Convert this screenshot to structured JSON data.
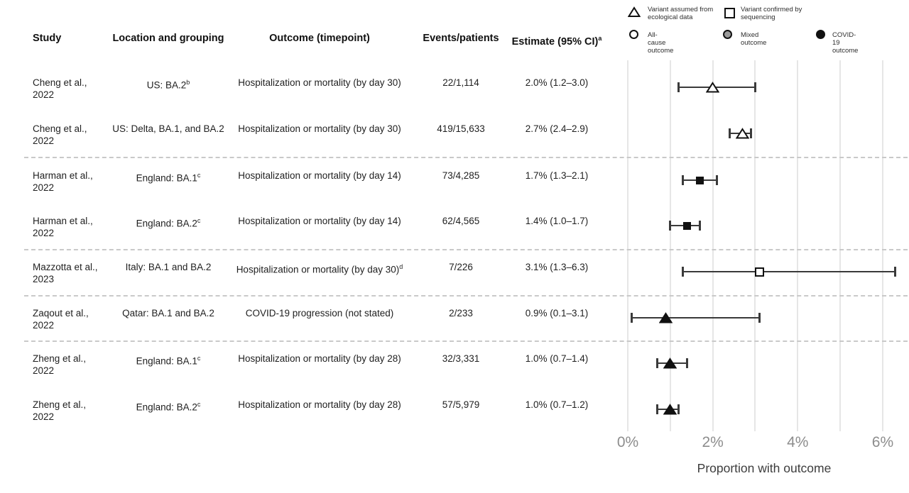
{
  "figure": {
    "columns": {
      "study": "Study",
      "location": "Location and grouping",
      "outcome": "Outcome (timepoint)",
      "events": "Events/patients",
      "estimate": "Estimate (95% CI)",
      "estimate_sup": "a"
    },
    "legend": [
      {
        "icon": "triangle-open-icon",
        "label": "Variant assumed from ecological data"
      },
      {
        "icon": "square-open-icon",
        "label": "Variant confirmed by sequencing"
      },
      {
        "icon": "circle-open-icon",
        "label": "All-cause outcome"
      },
      {
        "icon": "circle-gray-icon",
        "label": "Mixed outcome"
      },
      {
        "icon": "circle-black-icon",
        "label": "COVID-19 outcome"
      }
    ],
    "colors": {
      "marker": "#111111",
      "ci_line": "#3a3a3a",
      "gridline": "#e6e6e6",
      "separator": "#c9c9c9",
      "tick_label": "#8d8d8d",
      "mixed_fill": "#9a9a9a"
    }
  },
  "chart_data": {
    "type": "forest",
    "xlabel": "Proportion with outcome",
    "xlim": [
      0,
      6
    ],
    "x_tick_values": [
      0,
      2,
      4,
      6
    ],
    "x_tick_labels": [
      "0%",
      "2%",
      "4%",
      "6%"
    ],
    "gridline_step_pct": 1,
    "legend_note": "triangle = variant assumed from ecological data; square = variant confirmed by sequencing; white fill = all-cause outcome; gray fill = mixed outcome; black fill = COVID-19 outcome",
    "rows": [
      {
        "study": "Cheng et al.,",
        "year": "2022",
        "location": "US: BA.2",
        "location_sup": "b",
        "outcome": "Hospitalization or mortality (by day 30)",
        "outcome_sup": "",
        "events": "22/1,114",
        "estimate_text": "2.0% (1.2–3.0)",
        "estimate": 2.0,
        "ci_low": 1.2,
        "ci_high": 3.0,
        "marker": "triangle-open"
      },
      {
        "study": "Cheng et al.,",
        "year": "2022",
        "location": "US: Delta, BA.1, and BA.2",
        "location_sup": "",
        "outcome": "Hospitalization or mortality (by day 30)",
        "outcome_sup": "",
        "events": "419/15,633",
        "estimate_text": "2.7% (2.4–2.9)",
        "estimate": 2.7,
        "ci_low": 2.4,
        "ci_high": 2.9,
        "marker": "triangle-open"
      },
      {
        "study": "Harman et al.,",
        "year": "2022",
        "location": "England: BA.1",
        "location_sup": "c",
        "outcome": "Hospitalization or mortality (by day 14)",
        "outcome_sup": "",
        "events": "73/4,285",
        "estimate_text": "1.7% (1.3–2.1)",
        "estimate": 1.7,
        "ci_low": 1.3,
        "ci_high": 2.1,
        "marker": "square-filled"
      },
      {
        "study": "Harman et al.,",
        "year": "2022",
        "location": "England: BA.2",
        "location_sup": "c",
        "outcome": "Hospitalization or mortality (by day 14)",
        "outcome_sup": "",
        "events": "62/4,565",
        "estimate_text": "1.4% (1.0–1.7)",
        "estimate": 1.4,
        "ci_low": 1.0,
        "ci_high": 1.7,
        "marker": "square-filled"
      },
      {
        "study": "Mazzotta et al.,",
        "year": "2023",
        "location": "Italy: BA.1 and BA.2",
        "location_sup": "",
        "outcome": "Hospitalization or mortality (by day 30)",
        "outcome_sup": "d",
        "events": "7/226",
        "estimate_text": "3.1% (1.3–6.3)",
        "estimate": 3.1,
        "ci_low": 1.3,
        "ci_high": 6.3,
        "marker": "square-open"
      },
      {
        "study": "Zaqout et al.,",
        "year": "2022",
        "location": "Qatar: BA.1 and BA.2",
        "location_sup": "",
        "outcome": "COVID-19 progression (not stated)",
        "outcome_sup": "",
        "events": "2/233",
        "estimate_text": "0.9% (0.1–3.1)",
        "estimate": 0.9,
        "ci_low": 0.1,
        "ci_high": 3.1,
        "marker": "triangle-filled"
      },
      {
        "study": "Zheng et al.,",
        "year": "2022",
        "location": "England: BA.1",
        "location_sup": "c",
        "outcome": "Hospitalization or mortality (by day 28)",
        "outcome_sup": "",
        "events": "32/3,331",
        "estimate_text": "1.0% (0.7–1.4)",
        "estimate": 1.0,
        "ci_low": 0.7,
        "ci_high": 1.4,
        "marker": "triangle-filled"
      },
      {
        "study": "Zheng et al.,",
        "year": "2022",
        "location": "England: BA.2",
        "location_sup": "c",
        "outcome": "Hospitalization or mortality (by day 28)",
        "outcome_sup": "",
        "events": "57/5,979",
        "estimate_text": "1.0% (0.7–1.2)",
        "estimate": 1.0,
        "ci_low": 0.7,
        "ci_high": 1.2,
        "marker": "triangle-filled"
      }
    ],
    "separators_after_row": [
      1,
      3,
      4,
      5
    ]
  }
}
